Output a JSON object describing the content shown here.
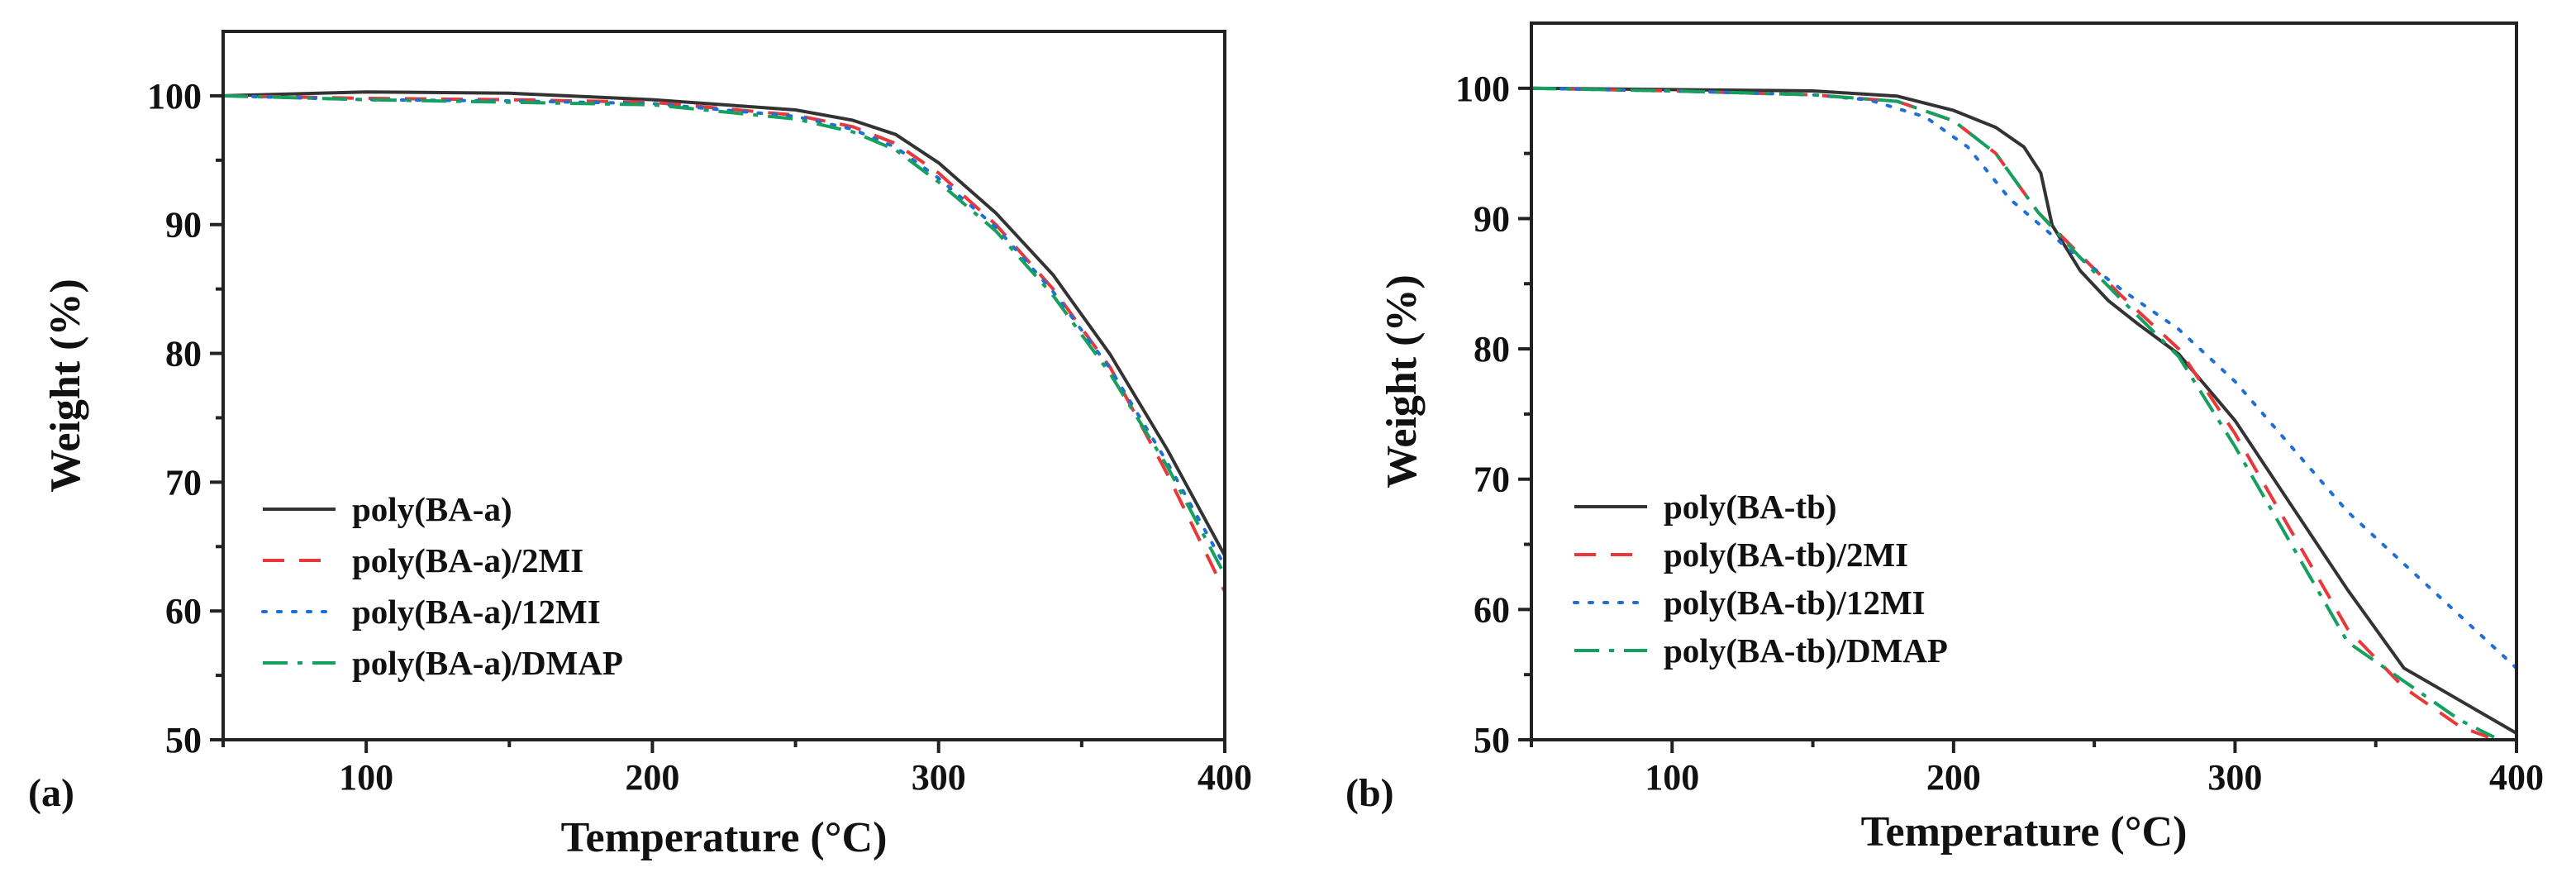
{
  "chart_data": [
    {
      "panel_label": "(a)",
      "type": "line",
      "xlabel": "Temperature (°C)",
      "ylabel": "Weight (%)",
      "xlim": [
        50,
        400
      ],
      "ylim": [
        50,
        105
      ],
      "xticks": [
        100,
        200,
        300,
        400
      ],
      "yticks": [
        50,
        60,
        70,
        80,
        90,
        100
      ],
      "legend_position": "lower-left",
      "series": [
        {
          "name": "poly(BA-a)",
          "color": "#333333",
          "dash": "solid",
          "x": [
            50,
            100,
            150,
            200,
            250,
            270,
            285,
            300,
            320,
            340,
            360,
            380,
            400
          ],
          "y": [
            100,
            100.3,
            100.2,
            99.7,
            98.9,
            98.1,
            97,
            94.8,
            90.9,
            86.1,
            79.9,
            72.5,
            64.3
          ]
        },
        {
          "name": "poly(BA-a)/2MI",
          "color": "#e8383c",
          "dash": "dashed",
          "x": [
            50,
            100,
            150,
            200,
            250,
            270,
            285,
            300,
            320,
            340,
            360,
            380,
            400
          ],
          "y": [
            100,
            99.8,
            99.7,
            99.5,
            98.5,
            97.6,
            96.3,
            94,
            90,
            85,
            78.9,
            70.6,
            61.5
          ]
        },
        {
          "name": "poly(BA-a)/12MI",
          "color": "#1f6fd6",
          "dash": "dotted",
          "x": [
            50,
            100,
            150,
            200,
            250,
            270,
            285,
            300,
            320,
            340,
            360,
            380,
            400
          ],
          "y": [
            100,
            99.7,
            99.6,
            99.4,
            98.4,
            97.4,
            96,
            93.6,
            89.8,
            84.8,
            78.8,
            71.5,
            63.5
          ]
        },
        {
          "name": "poly(BA-a)/DMAP",
          "color": "#15a060",
          "dash": "dashdot",
          "x": [
            50,
            100,
            150,
            200,
            250,
            270,
            285,
            300,
            320,
            340,
            360,
            380,
            400
          ],
          "y": [
            100,
            99.7,
            99.5,
            99.3,
            98.2,
            97.2,
            95.8,
            93.3,
            89.5,
            84.5,
            78.4,
            71.2,
            62.8
          ]
        }
      ]
    },
    {
      "panel_label": "(b)",
      "type": "line",
      "xlabel": "Temperature (°C)",
      "ylabel": "Weight (%)",
      "xlim": [
        50,
        400
      ],
      "ylim": [
        50,
        105
      ],
      "xticks": [
        100,
        200,
        300,
        400
      ],
      "yticks": [
        50,
        60,
        70,
        80,
        90,
        100
      ],
      "legend_position": "lower-left",
      "series": [
        {
          "name": "poly(BA-tb)",
          "color": "#333333",
          "dash": "solid",
          "x": [
            50,
            100,
            150,
            180,
            200,
            215,
            225,
            231,
            235,
            245,
            255,
            265,
            280,
            300,
            320,
            340,
            360,
            380,
            400
          ],
          "y": [
            100,
            99.9,
            99.8,
            99.4,
            98.3,
            97,
            95.5,
            93.5,
            89.5,
            86,
            83.7,
            82,
            79.6,
            74.5,
            68,
            61.5,
            55.5,
            53,
            50.5
          ]
        },
        {
          "name": "poly(BA-tb)/2MI",
          "color": "#e8383c",
          "dash": "dashed",
          "x": [
            50,
            100,
            150,
            180,
            200,
            215,
            230,
            245,
            260,
            280,
            300,
            320,
            340,
            360,
            380,
            390
          ],
          "y": [
            100,
            99.8,
            99.5,
            99,
            97.5,
            95,
            90.5,
            87.2,
            84,
            80,
            73.5,
            66,
            58.5,
            54,
            51,
            50.2
          ]
        },
        {
          "name": "poly(BA-tb)/12MI",
          "color": "#1f6fd6",
          "dash": "dotted",
          "x": [
            50,
            100,
            150,
            170,
            190,
            205,
            220,
            240,
            260,
            280,
            300,
            320,
            340,
            360,
            380,
            400
          ],
          "y": [
            100,
            99.8,
            99.5,
            99.1,
            97.8,
            95.5,
            91.5,
            87.8,
            84.5,
            81.5,
            77.5,
            72.5,
            67.5,
            63.5,
            59.5,
            55.5
          ]
        },
        {
          "name": "poly(BA-tb)/DMAP",
          "color": "#15a060",
          "dash": "dashdot",
          "x": [
            50,
            100,
            150,
            180,
            200,
            215,
            230,
            245,
            260,
            280,
            300,
            320,
            340,
            360,
            380,
            392
          ],
          "y": [
            100,
            99.8,
            99.5,
            99,
            97.5,
            95,
            90.5,
            87,
            83.7,
            79.4,
            72.5,
            65,
            57.5,
            54.5,
            51.5,
            50.2
          ]
        }
      ]
    }
  ]
}
